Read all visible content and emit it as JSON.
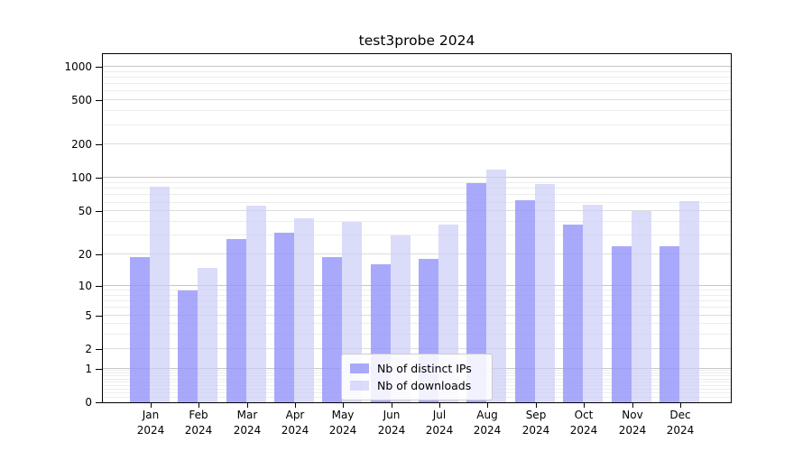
{
  "chart_data": {
    "type": "bar",
    "title": "test3probe 2024",
    "categories": [
      "Jan 2024",
      "Feb 2024",
      "Mar 2024",
      "Apr 2024",
      "May 2024",
      "Jun 2024",
      "Jul 2024",
      "Aug 2024",
      "Sep 2024",
      "Oct 2024",
      "Nov 2024",
      "Dec 2024"
    ],
    "series": [
      {
        "name": "Nb of distinct IPs",
        "color": "rgba(148,148,250,0.8)",
        "values": [
          19,
          9,
          28,
          32,
          19,
          16,
          18,
          90,
          63,
          38,
          24,
          24
        ]
      },
      {
        "name": "Nb of downloads",
        "color": "rgba(204,204,248,0.7)",
        "values": [
          83,
          15,
          56,
          43,
          40,
          30,
          38,
          119,
          89,
          57,
          50,
          62
        ]
      }
    ],
    "yscale": "log1p",
    "yticks": [
      0,
      1,
      2,
      5,
      10,
      20,
      50,
      100,
      200,
      500,
      1000
    ],
    "ytick_labels": [
      "0",
      "1",
      "2",
      "5",
      "10",
      "20",
      "50",
      "100",
      "200",
      "500",
      "1000"
    ],
    "ylim": [
      0,
      1300
    ],
    "xlabel": "",
    "ylabel": "",
    "grid": "horizontal, major and minor",
    "legend_position": "lower center",
    "colors": {
      "grid_major": "#c6c6c6",
      "grid_labeled": "#dcdcdc",
      "grid_minor": "#ededed",
      "axis": "#000000",
      "background": "#ffffff"
    }
  }
}
